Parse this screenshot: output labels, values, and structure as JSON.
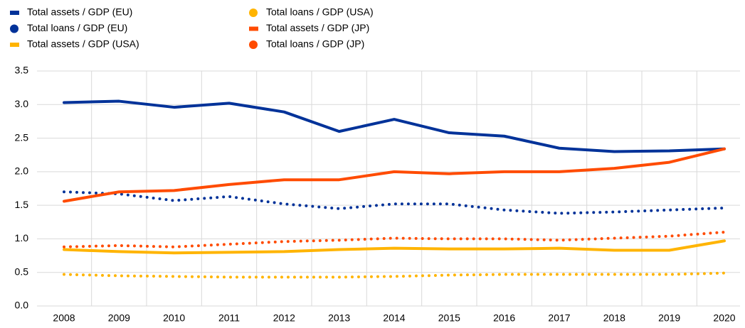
{
  "chart_data": {
    "type": "line",
    "categories": [
      "2008",
      "2009",
      "2010",
      "2011",
      "2012",
      "2013",
      "2014",
      "2015",
      "2016",
      "2017",
      "2018",
      "2019",
      "2020"
    ],
    "series": [
      {
        "name": "Total assets / GDP (EU)",
        "color": "#003299",
        "style": "solid",
        "values": [
          3.03,
          3.05,
          2.96,
          3.02,
          2.89,
          2.6,
          2.78,
          2.58,
          2.53,
          2.35,
          2.3,
          2.31,
          2.34
        ]
      },
      {
        "name": "Total loans / GDP (EU)",
        "color": "#003299",
        "style": "dotted",
        "values": [
          1.7,
          1.67,
          1.57,
          1.63,
          1.52,
          1.45,
          1.52,
          1.52,
          1.43,
          1.38,
          1.4,
          1.43,
          1.46
        ]
      },
      {
        "name": "Total assets / GDP (USA)",
        "color": "#ffb400",
        "style": "solid",
        "values": [
          0.84,
          0.81,
          0.79,
          0.8,
          0.81,
          0.84,
          0.86,
          0.85,
          0.85,
          0.86,
          0.83,
          0.83,
          0.97
        ]
      },
      {
        "name": "Total loans / GDP (USA)",
        "color": "#ffb400",
        "style": "dotted",
        "values": [
          0.47,
          0.45,
          0.44,
          0.43,
          0.43,
          0.43,
          0.44,
          0.46,
          0.47,
          0.47,
          0.47,
          0.47,
          0.49
        ]
      },
      {
        "name": "Total assets / GDP (JP)",
        "color": "#ff4b00",
        "style": "solid",
        "values": [
          1.56,
          1.7,
          1.72,
          1.81,
          1.88,
          1.88,
          2.0,
          1.97,
          2.0,
          2.0,
          2.05,
          2.14,
          2.34
        ]
      },
      {
        "name": "Total loans / GDP (JP)",
        "color": "#ff4b00",
        "style": "dotted",
        "values": [
          0.88,
          0.9,
          0.88,
          0.92,
          0.96,
          0.98,
          1.01,
          1.0,
          1.0,
          0.98,
          1.01,
          1.04,
          1.1
        ]
      }
    ],
    "ylim": [
      0,
      3.5
    ],
    "yticks": [
      {
        "value": 0,
        "label": "0.0"
      },
      0.5,
      {
        "value": 1,
        "label": "1.0"
      },
      1.5,
      {
        "value": 2,
        "label": "2.0"
      },
      2.5,
      {
        "value": 3,
        "label": "3.0"
      },
      3.5
    ],
    "grid": true,
    "legend": "top-left"
  }
}
